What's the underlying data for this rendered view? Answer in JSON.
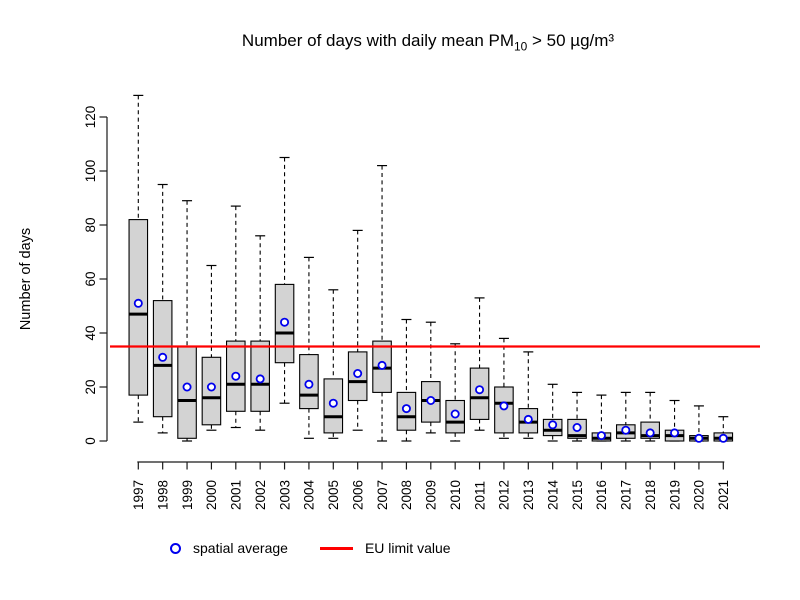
{
  "title": {
    "prefix": "Number of days with daily mean PM",
    "subscript": "10",
    "suffix": " > 50 µg/m³"
  },
  "y_axis": {
    "label": "Number of days",
    "ticks": [
      0,
      20,
      40,
      60,
      80,
      100,
      120
    ]
  },
  "legend": {
    "spatial_average_label": "spatial average",
    "eu_limit_label": "EU limit value"
  },
  "colors": {
    "box_fill": "#d3d3d3",
    "box_stroke": "#000000",
    "whisker": "#000000",
    "average_marker": "#0000ee",
    "eu_line": "#ff0000",
    "axis": "#1a1a1a"
  },
  "chart_data": {
    "type": "boxplot",
    "title": "Number of days with daily mean PM10 > 50 µg/m³",
    "xlabel": "",
    "ylabel": "Number of days",
    "ylim": [
      0,
      130
    ],
    "grid": false,
    "legend_position": "bottom",
    "eu_limit_value": 35,
    "categories": [
      1997,
      1998,
      1999,
      2000,
      2001,
      2002,
      2003,
      2004,
      2005,
      2006,
      2007,
      2008,
      2009,
      2010,
      2011,
      2012,
      2013,
      2014,
      2015,
      2016,
      2017,
      2018,
      2019,
      2020,
      2021
    ],
    "boxes": [
      {
        "year": 1997,
        "min": 7,
        "q1": 17,
        "median": 47,
        "q3": 82,
        "max": 128
      },
      {
        "year": 1998,
        "min": 3,
        "q1": 9,
        "median": 28,
        "q3": 52,
        "max": 95
      },
      {
        "year": 1999,
        "min": 0,
        "q1": 1,
        "median": 15,
        "q3": 35,
        "max": 89
      },
      {
        "year": 2000,
        "min": 4,
        "q1": 6,
        "median": 16,
        "q3": 31,
        "max": 65
      },
      {
        "year": 2001,
        "min": 5,
        "q1": 11,
        "median": 21,
        "q3": 37,
        "max": 87
      },
      {
        "year": 2002,
        "min": 4,
        "q1": 11,
        "median": 21,
        "q3": 37,
        "max": 76
      },
      {
        "year": 2003,
        "min": 14,
        "q1": 29,
        "median": 40,
        "q3": 58,
        "max": 105
      },
      {
        "year": 2004,
        "min": 1,
        "q1": 12,
        "median": 17,
        "q3": 32,
        "max": 68
      },
      {
        "year": 2005,
        "min": 1,
        "q1": 3,
        "median": 9,
        "q3": 23,
        "max": 56
      },
      {
        "year": 2006,
        "min": 4,
        "q1": 15,
        "median": 22,
        "q3": 33,
        "max": 78
      },
      {
        "year": 2007,
        "min": 0,
        "q1": 18,
        "median": 27,
        "q3": 37,
        "max": 102
      },
      {
        "year": 2008,
        "min": 0,
        "q1": 4,
        "median": 9,
        "q3": 18,
        "max": 45
      },
      {
        "year": 2009,
        "min": 3,
        "q1": 7,
        "median": 15,
        "q3": 22,
        "max": 44
      },
      {
        "year": 2010,
        "min": 0,
        "q1": 3,
        "median": 7,
        "q3": 15,
        "max": 36
      },
      {
        "year": 2011,
        "min": 4,
        "q1": 8,
        "median": 16,
        "q3": 27,
        "max": 53
      },
      {
        "year": 2012,
        "min": 1,
        "q1": 3,
        "median": 14,
        "q3": 20,
        "max": 38
      },
      {
        "year": 2013,
        "min": 1,
        "q1": 3,
        "median": 7,
        "q3": 12,
        "max": 33
      },
      {
        "year": 2014,
        "min": 0,
        "q1": 2,
        "median": 4,
        "q3": 8,
        "max": 21
      },
      {
        "year": 2015,
        "min": 0,
        "q1": 1,
        "median": 2,
        "q3": 8,
        "max": 18
      },
      {
        "year": 2016,
        "min": 0,
        "q1": 0,
        "median": 1,
        "q3": 3,
        "max": 17
      },
      {
        "year": 2017,
        "min": 0,
        "q1": 1,
        "median": 3,
        "q3": 6,
        "max": 18
      },
      {
        "year": 2018,
        "min": 0,
        "q1": 1,
        "median": 2,
        "q3": 7,
        "max": 18
      },
      {
        "year": 2019,
        "min": 0,
        "q1": 0,
        "median": 2,
        "q3": 4,
        "max": 15
      },
      {
        "year": 2020,
        "min": 0,
        "q1": 0,
        "median": 1,
        "q3": 2,
        "max": 13
      },
      {
        "year": 2021,
        "min": 0,
        "q1": 0,
        "median": 1,
        "q3": 3,
        "max": 9
      }
    ],
    "series": [
      {
        "name": "spatial average",
        "values": [
          51,
          31,
          20,
          20,
          24,
          23,
          44,
          21,
          14,
          25,
          28,
          12,
          15,
          10,
          19,
          13,
          8,
          6,
          5,
          2,
          4,
          3,
          3,
          1,
          1
        ]
      }
    ]
  }
}
